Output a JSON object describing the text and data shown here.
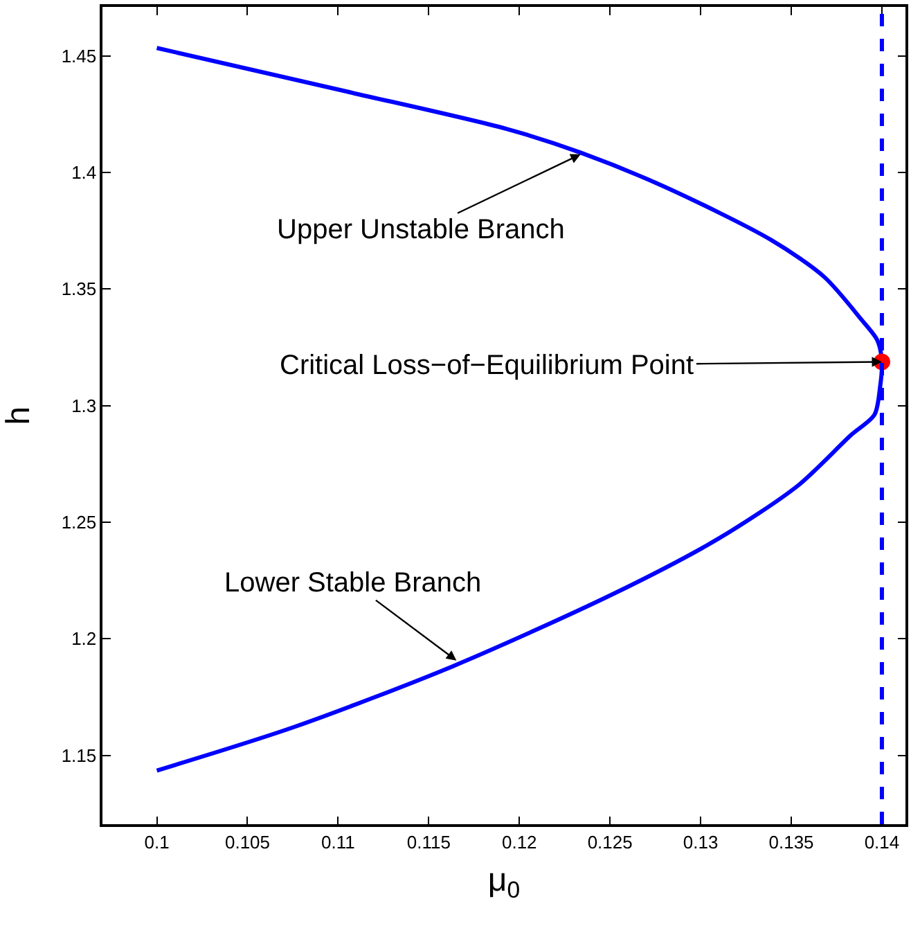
{
  "chart_data": {
    "type": "line",
    "xlabel": "μ$_{0}$",
    "ylabel": "h",
    "x": [
      0.1,
      0.10762,
      0.11638,
      0.12514,
      0.13097,
      0.13535,
      0.13827,
      0.13959,
      0.1399,
      0.14,
      0.13975,
      0.13886,
      0.13682,
      0.1339,
      0.12806,
      0.12338,
      0.11929,
      0.11054,
      0.1
    ],
    "series": [
      {
        "color": "#0000ff",
        "values": [
          1.1435,
          1.1623,
          1.1884,
          1.2191,
          1.2429,
          1.2656,
          1.2872,
          1.2961,
          1.308,
          1.3188,
          1.328,
          1.337,
          1.3552,
          1.371,
          1.3937,
          1.4085,
          1.4187,
          1.4346,
          1.4534
        ]
      },
      {
        "type": "scatter",
        "color": "#ff0000",
        "x": [
          0.14
        ],
        "values": [
          1.3188
        ]
      }
    ],
    "annotations": [
      {
        "text": "Upper Unstable Branch",
        "x": 0.12338,
        "y": 1.4078
      },
      {
        "text": "Critical Loss−of−Equilibrium Point",
        "x": 0.14,
        "y": 1.3188
      },
      {
        "text": "Lower Stable Branch",
        "x": 0.11653,
        "y": 1.1907
      }
    ],
    "ref_lines": [
      {
        "axis": "x",
        "value": 0.14,
        "color": "#0000ff",
        "line_style": "dashed"
      }
    ],
    "xlim": [
      0.097,
      0.1413
    ],
    "ylim": [
      1.1205,
      1.471
    ],
    "xticks": [
      0.1,
      0.105,
      0.11,
      0.115,
      0.12,
      0.125,
      0.13,
      0.135,
      0.14
    ],
    "yticks": [
      1.15,
      1.2,
      1.25,
      1.3,
      1.35,
      1.4,
      1.45
    ]
  }
}
